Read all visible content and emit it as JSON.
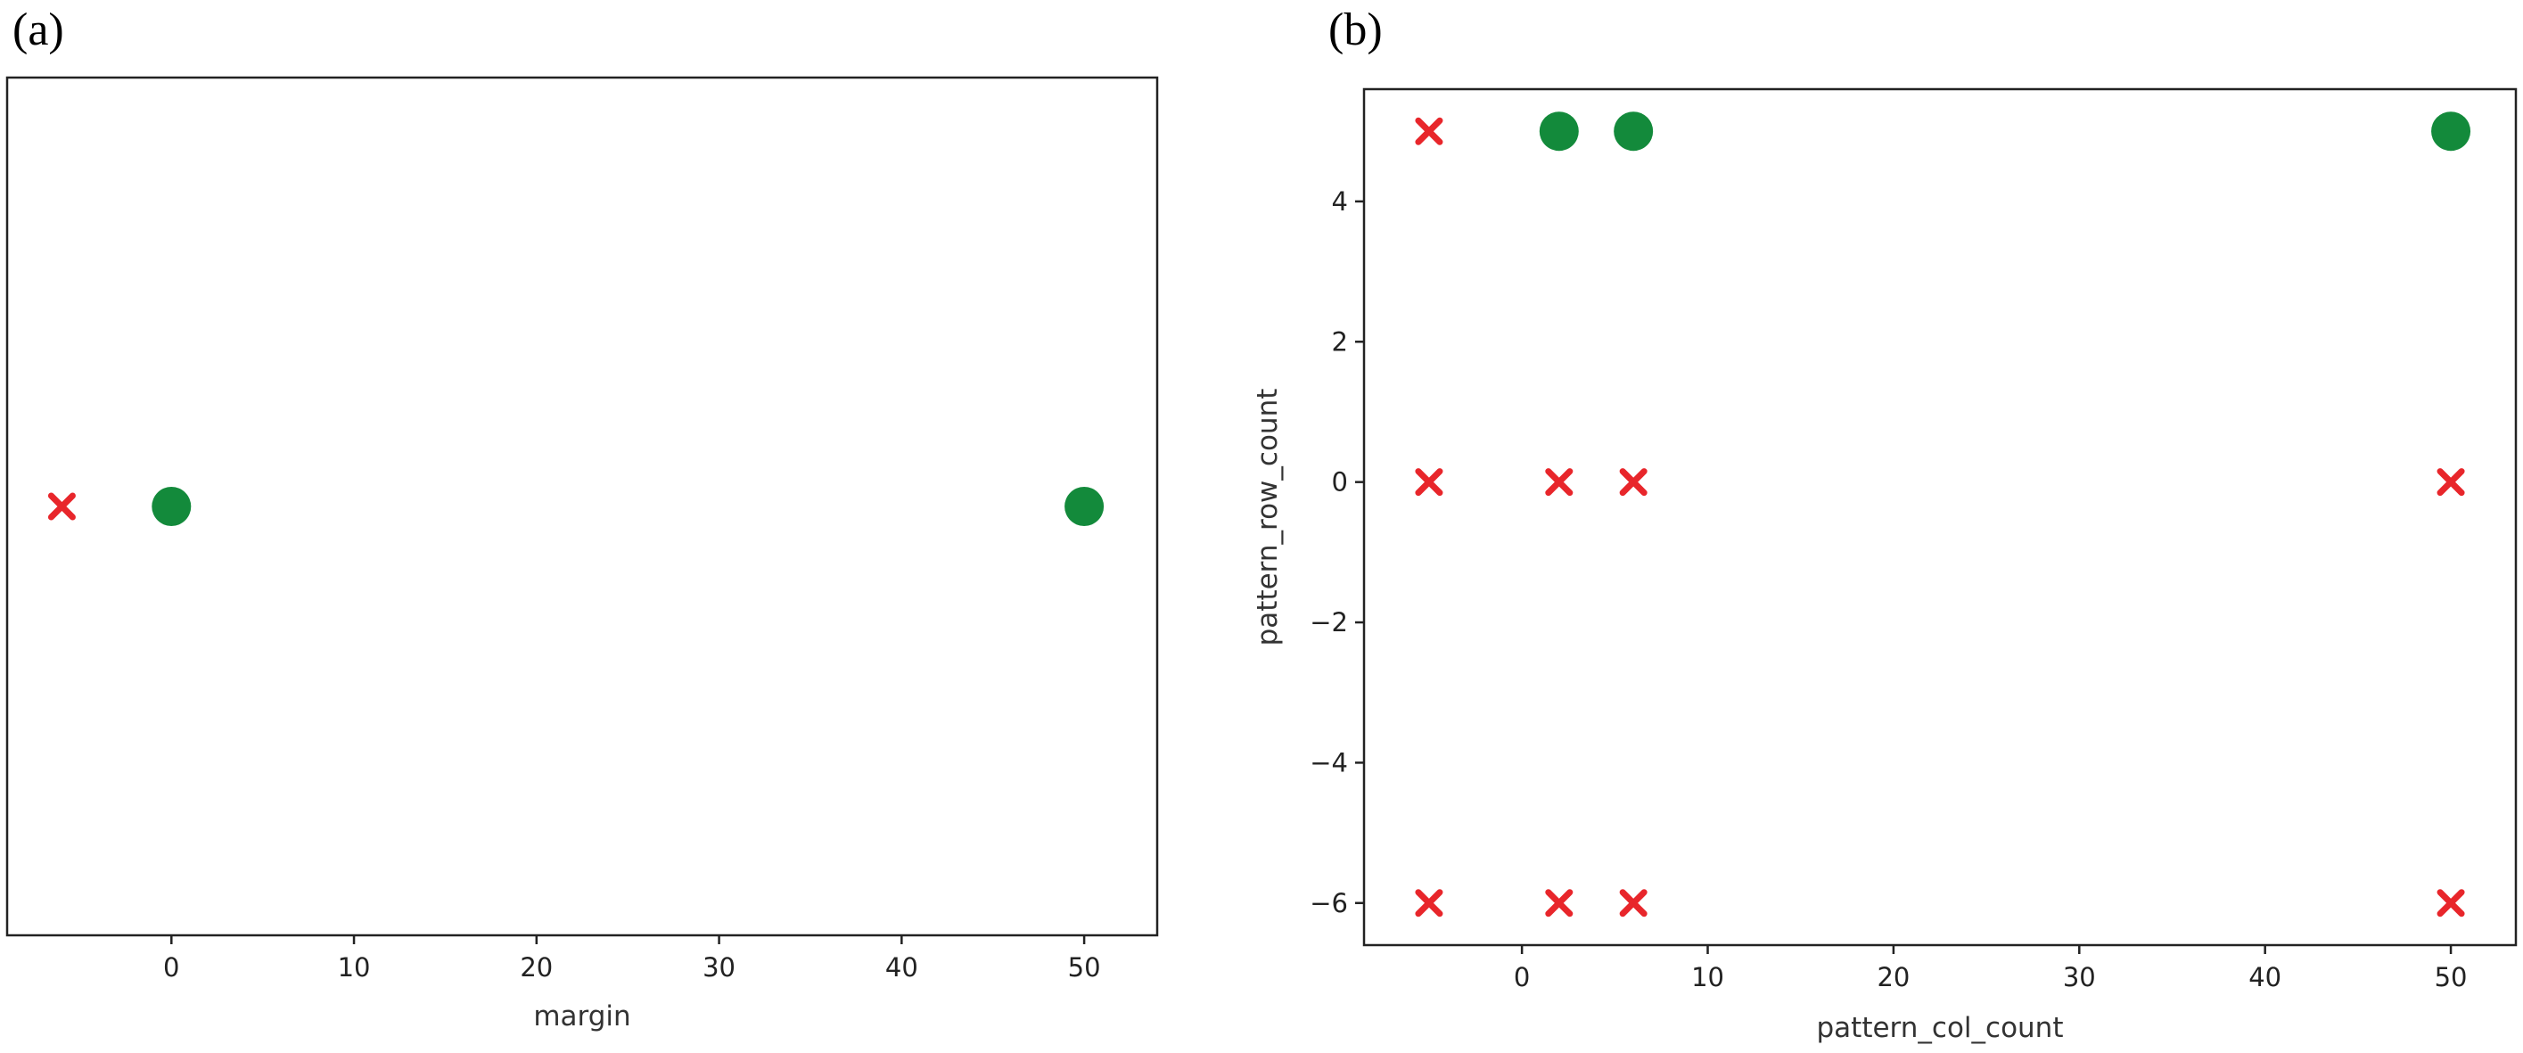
{
  "chart_data": [
    {
      "panel_label": "(a)",
      "type": "scatter",
      "xlabel": "margin",
      "ylabel": "",
      "xlim": [
        -9,
        54
      ],
      "ylim": [
        -1,
        1
      ],
      "x_ticks": [
        0,
        10,
        20,
        30,
        40,
        50
      ],
      "y_ticks": [],
      "grid": false,
      "series": [
        {
          "marker": "x",
          "color": "#e8262b",
          "points": [
            {
              "x": -6,
              "y": 0
            }
          ]
        },
        {
          "marker": "circle",
          "color": "#138a3b",
          "points": [
            {
              "x": 0,
              "y": 0
            },
            {
              "x": 50,
              "y": 0
            }
          ]
        }
      ]
    },
    {
      "panel_label": "(b)",
      "type": "scatter",
      "xlabel": "pattern_col_count",
      "ylabel": "pattern_row_count",
      "xlim": [
        -8.5,
        53.5
      ],
      "ylim": [
        -6.6,
        5.6
      ],
      "x_ticks": [
        0,
        10,
        20,
        30,
        40,
        50
      ],
      "y_ticks": [
        -6,
        -4,
        -2,
        0,
        2,
        4
      ],
      "grid": false,
      "series": [
        {
          "marker": "x",
          "color": "#e8262b",
          "points": [
            {
              "x": -5,
              "y": 5
            },
            {
              "x": -5,
              "y": 0
            },
            {
              "x": 2,
              "y": 0
            },
            {
              "x": 6,
              "y": 0
            },
            {
              "x": 50,
              "y": 0
            },
            {
              "x": -5,
              "y": -6
            },
            {
              "x": 2,
              "y": -6
            },
            {
              "x": 6,
              "y": -6
            },
            {
              "x": 50,
              "y": -6
            }
          ]
        },
        {
          "marker": "circle",
          "color": "#138a3b",
          "points": [
            {
              "x": 2,
              "y": 5
            },
            {
              "x": 6,
              "y": 5
            },
            {
              "x": 50,
              "y": 5
            }
          ]
        }
      ]
    }
  ]
}
